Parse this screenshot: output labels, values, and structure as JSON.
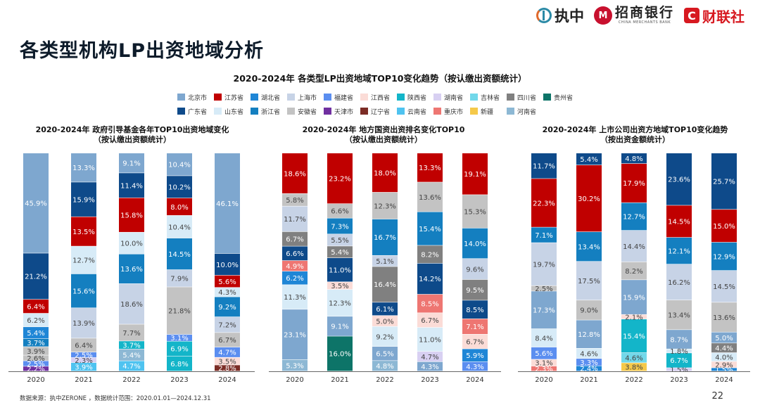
{
  "page": {
    "title": "各类型机构LP出资地域分析",
    "page_number": "22",
    "footer_source": "数据来源：执中ZERONE ，数据统计范围：2020.01.01—2024.12.31"
  },
  "logos": {
    "zhizhong": "执中",
    "cmb_cn": "招商银行",
    "cmb_en": "CHINA MERCHANTS BANK",
    "cls_mark": "C",
    "cls_text": "财联社"
  },
  "main_chart_title": "2020-2024年  各类型LP出资地域TOP10变化趋势（按认缴出资额统计）",
  "legend": [
    {
      "name": "北京市",
      "color": "#7ea7cf"
    },
    {
      "name": "江苏省",
      "color": "#c00000"
    },
    {
      "name": "湖北省",
      "color": "#1f86d6"
    },
    {
      "name": "上海市",
      "color": "#c7d3e6"
    },
    {
      "name": "福建省",
      "color": "#5b8ef0"
    },
    {
      "name": "江西省",
      "color": "#fbdcd7"
    },
    {
      "name": "陕西省",
      "color": "#13b5c9"
    },
    {
      "name": "湖南省",
      "color": "#d8d0f2"
    },
    {
      "name": "吉林省",
      "color": "#72d8ea"
    },
    {
      "name": "四川省",
      "color": "#808080"
    },
    {
      "name": "贵州省",
      "color": "#0d7468"
    },
    {
      "name": "广东省",
      "color": "#0e4a8a"
    },
    {
      "name": "山东省",
      "color": "#d7ebf7"
    },
    {
      "name": "浙江省",
      "color": "#147fc0"
    },
    {
      "name": "安徽省",
      "color": "#c3c3c3"
    },
    {
      "name": "天津市",
      "color": "#7030a0"
    },
    {
      "name": "辽宁省",
      "color": "#7b2c25"
    },
    {
      "name": "云南省",
      "color": "#4fc3f0"
    },
    {
      "name": "重庆市",
      "color": "#ee7672"
    },
    {
      "name": "新疆",
      "color": "#f5c94a"
    },
    {
      "name": "河南省",
      "color": "#8db8d4"
    }
  ],
  "chart_data": [
    {
      "type": "bar",
      "stacked": true,
      "title": "2020-2024年 政府引导基金各年TOP10出资地域变化",
      "subtitle": "（按认缴出资额统计）",
      "categories": [
        "2020",
        "2021",
        "2022",
        "2023",
        "2024"
      ],
      "ylim": [
        0,
        100
      ],
      "stacks": [
        [
          {
            "region": "天津市",
            "value": 2.2
          },
          {
            "region": "福建省",
            "value": 2.5
          },
          {
            "region": "安徽省",
            "value": 2.6
          },
          {
            "region": "安徽省",
            "value": 3.9
          },
          {
            "region": "浙江省",
            "value": 3.7
          },
          {
            "region": "湖北省",
            "value": 5.4
          },
          {
            "region": "山东省",
            "value": 6.2
          },
          {
            "region": "江苏省",
            "value": 6.4
          },
          {
            "region": "广东省",
            "value": 21.2
          },
          {
            "region": "北京市",
            "value": 45.9
          }
        ],
        [
          {
            "region": "云南省",
            "value": 3.9
          },
          {
            "region": "湖南省",
            "value": 2.3
          },
          {
            "region": "福建省",
            "value": 2.5
          },
          {
            "region": "安徽省",
            "value": 6.4
          },
          {
            "region": "上海市",
            "value": 13.9
          },
          {
            "region": "浙江省",
            "value": 15.6
          },
          {
            "region": "山东省",
            "value": 12.7
          },
          {
            "region": "江苏省",
            "value": 13.5
          },
          {
            "region": "广东省",
            "value": 15.9
          },
          {
            "region": "北京市",
            "value": 13.3
          }
        ],
        [
          {
            "region": "云南省",
            "value": 4.7
          },
          {
            "region": "河南省",
            "value": 5.4
          },
          {
            "region": "陕西省",
            "value": 3.7
          },
          {
            "region": "安徽省",
            "value": 7.7
          },
          {
            "region": "上海市",
            "value": 18.6
          },
          {
            "region": "浙江省",
            "value": 13.6
          },
          {
            "region": "山东省",
            "value": 10.0
          },
          {
            "region": "江苏省",
            "value": 15.8
          },
          {
            "region": "广东省",
            "value": 11.4
          },
          {
            "region": "北京市",
            "value": 9.1
          }
        ],
        [
          {
            "region": "陕西省",
            "value": 6.8
          },
          {
            "region": "陕西省",
            "value": 6.9
          },
          {
            "region": "福建省",
            "value": 3.1
          },
          {
            "region": "安徽省",
            "value": 21.8
          },
          {
            "region": "上海市",
            "value": 7.9
          },
          {
            "region": "浙江省",
            "value": 14.5
          },
          {
            "region": "山东省",
            "value": 10.4
          },
          {
            "region": "江苏省",
            "value": 8.0
          },
          {
            "region": "广东省",
            "value": 10.2
          },
          {
            "region": "北京市",
            "value": 10.4
          }
        ],
        [
          {
            "region": "辽宁省",
            "value": 2.8
          },
          {
            "region": "江西省",
            "value": 3.5
          },
          {
            "region": "福建省",
            "value": 4.7
          },
          {
            "region": "安徽省",
            "value": 6.7
          },
          {
            "region": "上海市",
            "value": 7.2
          },
          {
            "region": "浙江省",
            "value": 9.2
          },
          {
            "region": "山东省",
            "value": 4.3
          },
          {
            "region": "江苏省",
            "value": 5.6
          },
          {
            "region": "广东省",
            "value": 10.0
          },
          {
            "region": "北京市",
            "value": 46.1
          }
        ]
      ]
    },
    {
      "type": "bar",
      "stacked": true,
      "title": "2020-2024年 地方国资出资排名变化TOP10",
      "subtitle": "（按认缴出资额统计）",
      "categories": [
        "2020",
        "2021",
        "2022",
        "2023",
        "2024"
      ],
      "ylim": [
        0,
        100
      ],
      "stacks": [
        [
          {
            "region": "河南省",
            "value": 5.3
          },
          {
            "region": "北京市",
            "value": 23.1
          },
          {
            "region": "山东省",
            "value": 11.3
          },
          {
            "region": "湖北省",
            "value": 6.2
          },
          {
            "region": "重庆市",
            "value": 4.9
          },
          {
            "region": "广东省",
            "value": 6.6
          },
          {
            "region": "四川省",
            "value": 6.7
          },
          {
            "region": "上海市",
            "value": 11.7
          },
          {
            "region": "安徽省",
            "value": 5.8
          },
          {
            "region": "江苏省",
            "value": 18.6
          }
        ],
        [
          {
            "region": "贵州省",
            "value": 16.0
          },
          {
            "region": "北京市",
            "value": 9.1
          },
          {
            "region": "山东省",
            "value": 12.3
          },
          {
            "region": "江西省",
            "value": 3.5
          },
          {
            "region": "广东省",
            "value": 11.0
          },
          {
            "region": "四川省",
            "value": 5.4
          },
          {
            "region": "上海市",
            "value": 5.5
          },
          {
            "region": "浙江省",
            "value": 7.3
          },
          {
            "region": "安徽省",
            "value": 6.6
          },
          {
            "region": "江苏省",
            "value": 23.2
          }
        ],
        [
          {
            "region": "河南省",
            "value": 4.8
          },
          {
            "region": "北京市",
            "value": 6.5
          },
          {
            "region": "山东省",
            "value": 9.2
          },
          {
            "region": "江西省",
            "value": 5.0
          },
          {
            "region": "广东省",
            "value": 6.1
          },
          {
            "region": "四川省",
            "value": 16.4
          },
          {
            "region": "上海市",
            "value": 5.1
          },
          {
            "region": "浙江省",
            "value": 16.7
          },
          {
            "region": "安徽省",
            "value": 12.3
          },
          {
            "region": "江苏省",
            "value": 18.0
          }
        ],
        [
          {
            "region": "北京市",
            "value": 4.3
          },
          {
            "region": "湖南省",
            "value": 4.7
          },
          {
            "region": "山东省",
            "value": 11.0
          },
          {
            "region": "江西省",
            "value": 6.7
          },
          {
            "region": "重庆市",
            "value": 8.5
          },
          {
            "region": "广东省",
            "value": 14.2
          },
          {
            "region": "四川省",
            "value": 8.2
          },
          {
            "region": "浙江省",
            "value": 15.4
          },
          {
            "region": "安徽省",
            "value": 13.6
          },
          {
            "region": "江苏省",
            "value": 13.3
          }
        ],
        [
          {
            "region": "福建省",
            "value": 4.3
          },
          {
            "region": "湖北省",
            "value": 5.9
          },
          {
            "region": "江西省",
            "value": 6.7
          },
          {
            "region": "重庆市",
            "value": 7.1
          },
          {
            "region": "广东省",
            "value": 8.5
          },
          {
            "region": "四川省",
            "value": 9.5
          },
          {
            "region": "上海市",
            "value": 9.6
          },
          {
            "region": "浙江省",
            "value": 14.0
          },
          {
            "region": "安徽省",
            "value": 15.3
          },
          {
            "region": "江苏省",
            "value": 19.1
          }
        ]
      ]
    },
    {
      "type": "bar",
      "stacked": true,
      "title": "2020-2024年 上市公司出资方地域TOP10变化趋势",
      "subtitle": "（按出资金额统计）",
      "categories": [
        "2020",
        "2021",
        "2022",
        "2023",
        "2024"
      ],
      "ylim": [
        0,
        100
      ],
      "stacks": [
        [
          {
            "region": "重庆市",
            "value": 2.3
          },
          {
            "region": "江西省",
            "value": 3.1
          },
          {
            "region": "福建省",
            "value": 5.6
          },
          {
            "region": "山东省",
            "value": 8.4
          },
          {
            "region": "北京市",
            "value": 17.3
          },
          {
            "region": "安徽省",
            "value": 2.5
          },
          {
            "region": "上海市",
            "value": 19.7
          },
          {
            "region": "浙江省",
            "value": 7.1
          },
          {
            "region": "江苏省",
            "value": 22.3
          },
          {
            "region": "广东省",
            "value": 11.7
          }
        ],
        [
          {
            "region": "湖北省",
            "value": 2.4
          },
          {
            "region": "福建省",
            "value": 3.3
          },
          {
            "region": "山东省",
            "value": 4.6
          },
          {
            "region": "北京市",
            "value": 12.8
          },
          {
            "region": "安徽省",
            "value": 9.0
          },
          {
            "region": "上海市",
            "value": 17.5
          },
          {
            "region": "浙江省",
            "value": 13.4
          },
          {
            "region": "江苏省",
            "value": 30.2
          },
          {
            "region": "广东省",
            "value": 5.4
          }
        ],
        [
          {
            "region": "新疆",
            "value": 3.8
          },
          {
            "region": "吉林省",
            "value": 4.6
          },
          {
            "region": "陕西省",
            "value": 15.4
          },
          {
            "region": "江西省",
            "value": 2.1
          },
          {
            "region": "北京市",
            "value": 15.9
          },
          {
            "region": "安徽省",
            "value": 8.2
          },
          {
            "region": "上海市",
            "value": 14.4
          },
          {
            "region": "浙江省",
            "value": 12.7
          },
          {
            "region": "江苏省",
            "value": 17.9
          },
          {
            "region": "广东省",
            "value": 4.8
          }
        ],
        [
          {
            "region": "湖南省",
            "value": 1.5
          },
          {
            "region": "陕西省",
            "value": 6.7
          },
          {
            "region": "山东省",
            "value": 1.8
          },
          {
            "region": "北京市",
            "value": 8.7
          },
          {
            "region": "安徽省",
            "value": 13.4
          },
          {
            "region": "上海市",
            "value": 16.2
          },
          {
            "region": "浙江省",
            "value": 12.1
          },
          {
            "region": "江苏省",
            "value": 14.5
          },
          {
            "region": "广东省",
            "value": 23.6
          }
        ],
        [
          {
            "region": "湖北省",
            "value": 1.5
          },
          {
            "region": "江西省",
            "value": 2.9
          },
          {
            "region": "山东省",
            "value": 4.0
          },
          {
            "region": "四川省",
            "value": 4.4
          },
          {
            "region": "北京市",
            "value": 5.0
          },
          {
            "region": "安徽省",
            "value": 13.6
          },
          {
            "region": "上海市",
            "value": 14.5
          },
          {
            "region": "浙江省",
            "value": 12.9
          },
          {
            "region": "江苏省",
            "value": 15.0
          },
          {
            "region": "广东省",
            "value": 25.7
          }
        ]
      ]
    }
  ]
}
